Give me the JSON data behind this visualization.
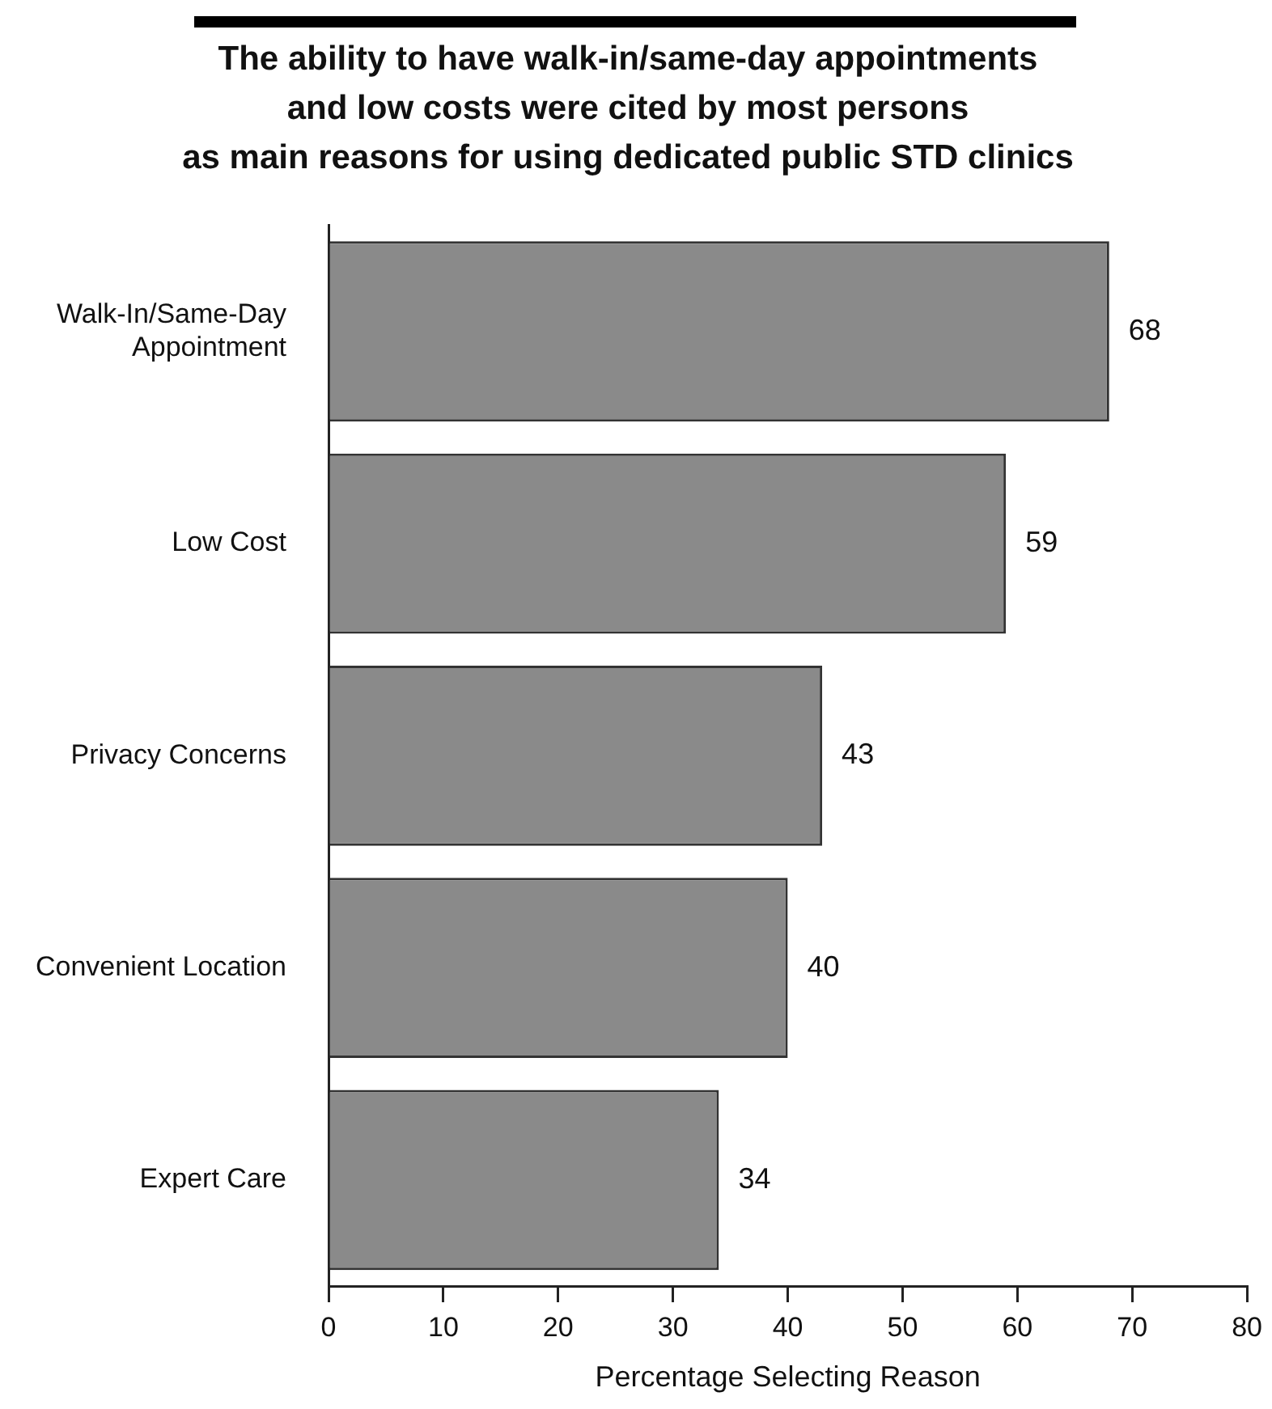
{
  "chart_data": {
    "type": "bar",
    "orientation": "horizontal",
    "title": "The ability to have walk-in/same-day appointments\nand low costs were cited by most persons\nas main reasons for using dedicated public STD clinics",
    "xlabel": "Percentage Selecting Reason",
    "categories": [
      "Walk-In/Same-Day\nAppointment",
      "Low Cost",
      "Privacy Concerns",
      "Convenient Location",
      "Expert Care"
    ],
    "values": [
      68,
      59,
      43,
      40,
      34
    ],
    "color": "#8a8a8a",
    "xlim": [
      0,
      80
    ],
    "xticks": [
      0,
      10,
      20,
      30,
      40,
      50,
      60,
      70,
      80
    ],
    "data_labels": true
  }
}
